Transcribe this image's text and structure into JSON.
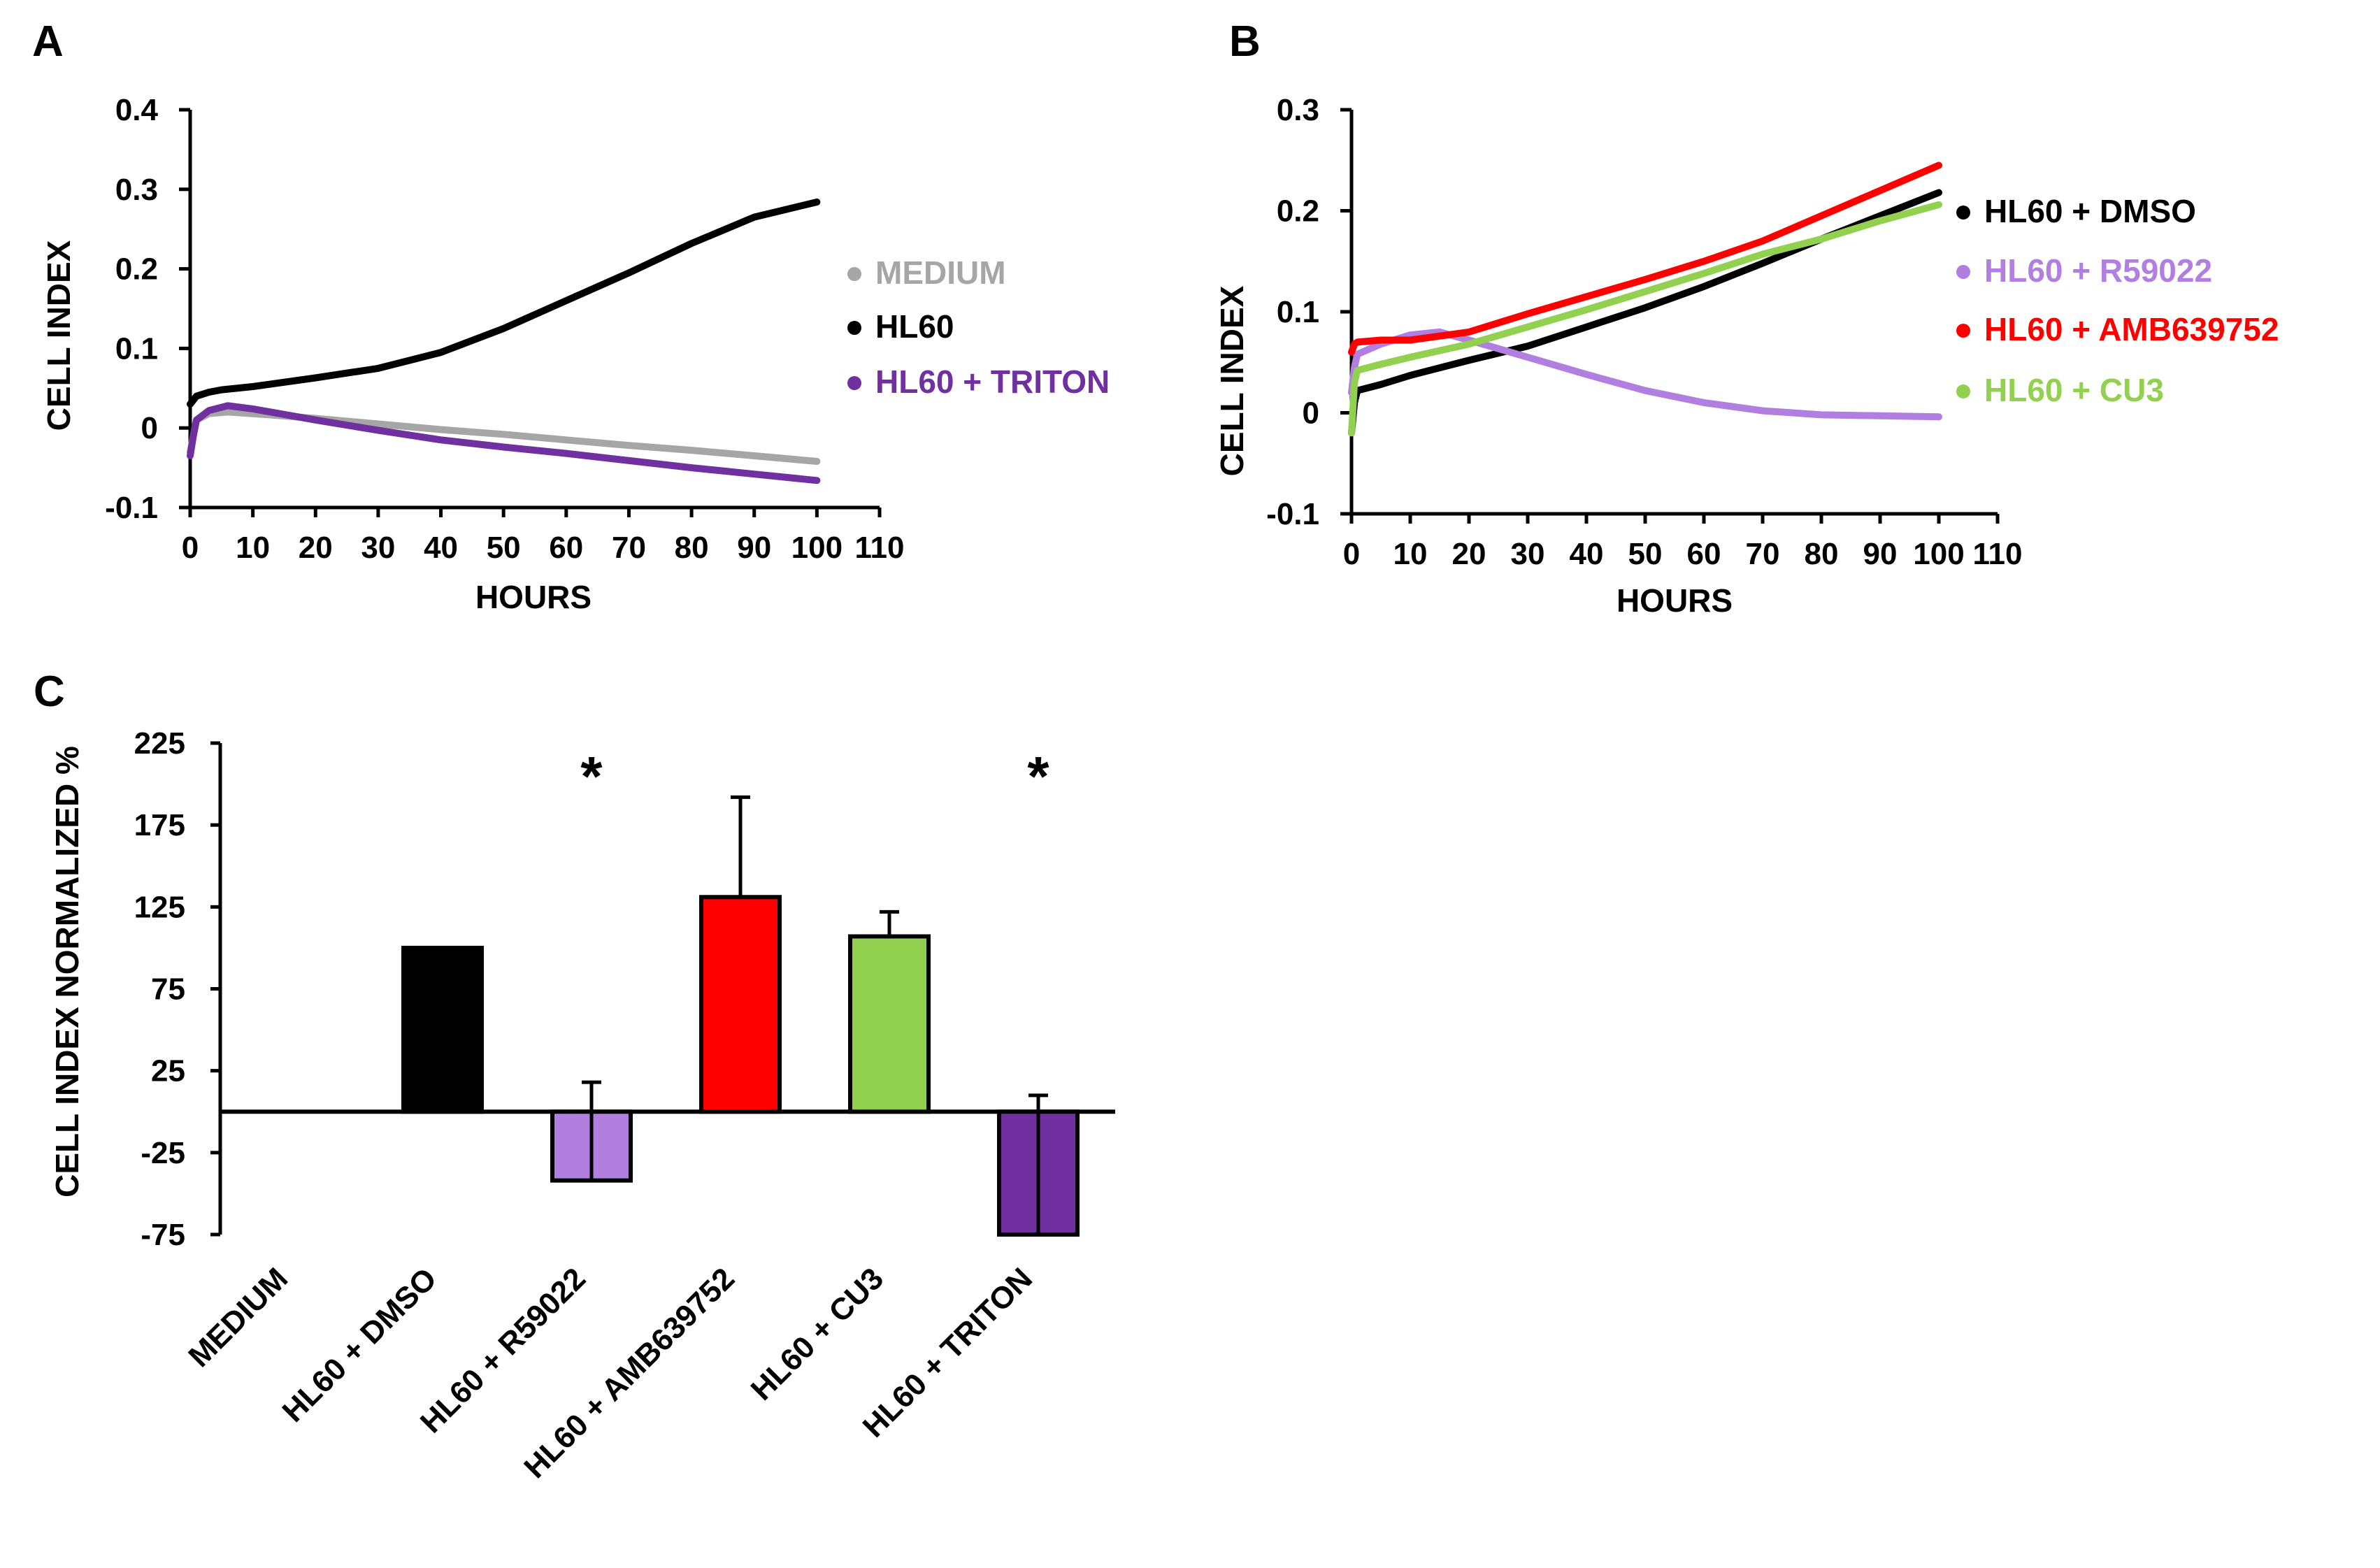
{
  "chart_data": [
    {
      "id": "A",
      "type": "line",
      "panel_label": "A",
      "xlabel": "HOURS",
      "ylabel": "CELL INDEX",
      "xlim": [
        0,
        110
      ],
      "ylim": [
        -0.1,
        0.4
      ],
      "xticks": [
        0,
        10,
        20,
        30,
        40,
        50,
        60,
        70,
        80,
        90,
        100,
        110
      ],
      "xtick_labels": [
        "0",
        "10",
        "20",
        "30",
        "40",
        "50",
        "60",
        "70",
        "80",
        "90",
        "100",
        "110"
      ],
      "yticks": [
        -0.1,
        0,
        0.1,
        0.2,
        0.3,
        0.4
      ],
      "ytick_labels": [
        "-0.1",
        "0",
        "0.1",
        "0.2",
        "0.3",
        "0.4"
      ],
      "legend": "right",
      "series": [
        {
          "name": "MEDIUM",
          "color": "#a6a6a6",
          "x": [
            0,
            0.5,
            1,
            3,
            6,
            10,
            20,
            30,
            40,
            50,
            60,
            70,
            80,
            90,
            100
          ],
          "y": [
            -0.03,
            -0.01,
            0.01,
            0.018,
            0.02,
            0.018,
            0.012,
            0.005,
            -0.002,
            -0.008,
            -0.015,
            -0.022,
            -0.028,
            -0.035,
            -0.042
          ]
        },
        {
          "name": "HL60",
          "color": "#000000",
          "x": [
            0,
            0.5,
            1,
            3,
            5,
            10,
            20,
            30,
            40,
            50,
            60,
            70,
            80,
            90,
            100
          ],
          "y": [
            0.03,
            0.035,
            0.04,
            0.045,
            0.048,
            0.052,
            0.063,
            0.075,
            0.095,
            0.125,
            0.16,
            0.195,
            0.232,
            0.265,
            0.284
          ]
        },
        {
          "name": "HL60 + TRITON",
          "color": "#7030a0",
          "x": [
            0,
            0.5,
            1,
            3,
            6,
            10,
            20,
            30,
            40,
            50,
            60,
            70,
            80,
            90,
            100
          ],
          "y": [
            -0.035,
            -0.01,
            0.01,
            0.022,
            0.028,
            0.024,
            0.01,
            -0.003,
            -0.015,
            -0.024,
            -0.032,
            -0.041,
            -0.05,
            -0.058,
            -0.066
          ]
        }
      ]
    },
    {
      "id": "B",
      "type": "line",
      "panel_label": "B",
      "xlabel": "HOURS",
      "ylabel": "CELL INDEX",
      "xlim": [
        0,
        110
      ],
      "ylim": [
        -0.1,
        0.3
      ],
      "xticks": [
        0,
        10,
        20,
        30,
        40,
        50,
        60,
        70,
        80,
        90,
        100,
        110
      ],
      "xtick_labels": [
        "0",
        "10",
        "20",
        "30",
        "40",
        "50",
        "60",
        "70",
        "80",
        "90",
        "100",
        "110"
      ],
      "yticks": [
        -0.1,
        0,
        0.1,
        0.2,
        0.3
      ],
      "ytick_labels": [
        "-0.1",
        "0",
        "0.1",
        "0.2",
        "0.3"
      ],
      "legend": "right",
      "series": [
        {
          "name": "HL60 + DMSO",
          "color": "#000000",
          "x": [
            0,
            0.5,
            1,
            5,
            10,
            20,
            30,
            40,
            50,
            60,
            70,
            80,
            90,
            100
          ],
          "y": [
            -0.02,
            0.01,
            0.022,
            0.028,
            0.037,
            0.052,
            0.066,
            0.085,
            0.104,
            0.125,
            0.148,
            0.172,
            0.195,
            0.218
          ]
        },
        {
          "name": "HL60 + R59022",
          "color": "#b07fe0",
          "x": [
            0,
            0.5,
            1,
            5,
            10,
            15,
            20,
            30,
            40,
            50,
            60,
            70,
            80,
            90,
            100
          ],
          "y": [
            0.02,
            0.045,
            0.058,
            0.068,
            0.077,
            0.08,
            0.072,
            0.055,
            0.038,
            0.022,
            0.01,
            0.002,
            -0.002,
            -0.003,
            -0.004
          ]
        },
        {
          "name": "HL60 + AMB639752",
          "color": "#ff0000",
          "x": [
            0,
            0.5,
            1,
            5,
            10,
            20,
            30,
            40,
            50,
            60,
            70,
            80,
            90,
            100
          ],
          "y": [
            0.06,
            0.068,
            0.07,
            0.072,
            0.072,
            0.08,
            0.098,
            0.115,
            0.132,
            0.15,
            0.17,
            0.195,
            0.22,
            0.245
          ]
        },
        {
          "name": "HL60 + CU3",
          "color": "#92d050",
          "x": [
            0,
            0.5,
            1,
            5,
            10,
            20,
            30,
            40,
            50,
            60,
            70,
            80,
            90,
            100
          ],
          "y": [
            -0.02,
            0.03,
            0.042,
            0.048,
            0.055,
            0.068,
            0.085,
            0.102,
            0.12,
            0.138,
            0.157,
            0.172,
            0.19,
            0.206
          ]
        }
      ]
    },
    {
      "id": "C",
      "type": "bar",
      "panel_label": "C",
      "ylabel": "CELL INDEX NORMALIZED %",
      "ylim": [
        -75,
        225
      ],
      "yticks": [
        -75,
        -25,
        25,
        75,
        125,
        175,
        225
      ],
      "ytick_labels": [
        "-75",
        "-25",
        "25",
        "75",
        "125",
        "175",
        "225"
      ],
      "categories": [
        "MEDIUM",
        "HL60 + DMSO",
        "HL60 + R59022",
        "HL60 + AMB639752",
        "HL60 + CU3",
        "HL60 + TRITON"
      ],
      "values": [
        0,
        100,
        -42,
        131,
        107,
        -75
      ],
      "errors": [
        0,
        0,
        60,
        61,
        15,
        85
      ],
      "colors": [
        "#ffffff",
        "#000000",
        "#b07fe0",
        "#ff0000",
        "#92d050",
        "#7030a0"
      ],
      "significance": [
        "",
        "",
        "*",
        "",
        "",
        "*"
      ]
    }
  ]
}
